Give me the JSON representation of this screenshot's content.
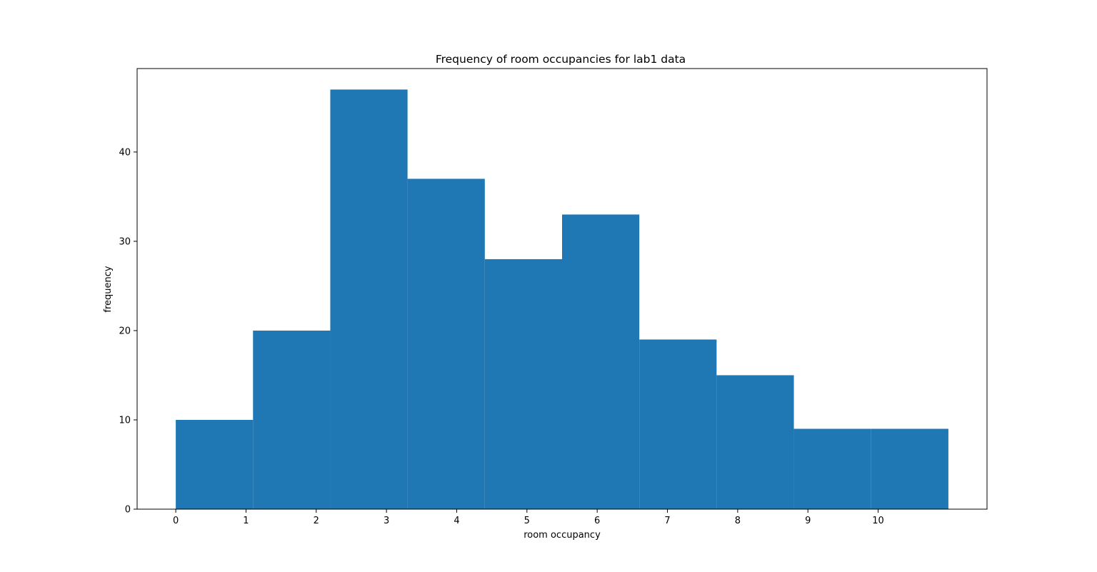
{
  "chart_data": {
    "type": "bar",
    "title": "Frequency of room occupancies for lab1 data",
    "xlabel": "room occupancy",
    "ylabel": "frequency",
    "bin_edges": [
      0,
      1.1,
      2.2,
      3.3,
      4.4,
      5.5,
      6.6,
      7.7,
      8.8,
      9.9,
      11
    ],
    "values": [
      10,
      20,
      47,
      37,
      28,
      33,
      19,
      15,
      9,
      9
    ],
    "xlim": [
      -0.55,
      11.55
    ],
    "ylim": [
      0,
      49.35
    ],
    "x_ticks": [
      0,
      1,
      2,
      3,
      4,
      5,
      6,
      7,
      8,
      9,
      10
    ],
    "y_ticks": [
      0,
      10,
      20,
      30,
      40
    ],
    "bar_color": "#1f77b4",
    "grid": false,
    "legend": false
  }
}
